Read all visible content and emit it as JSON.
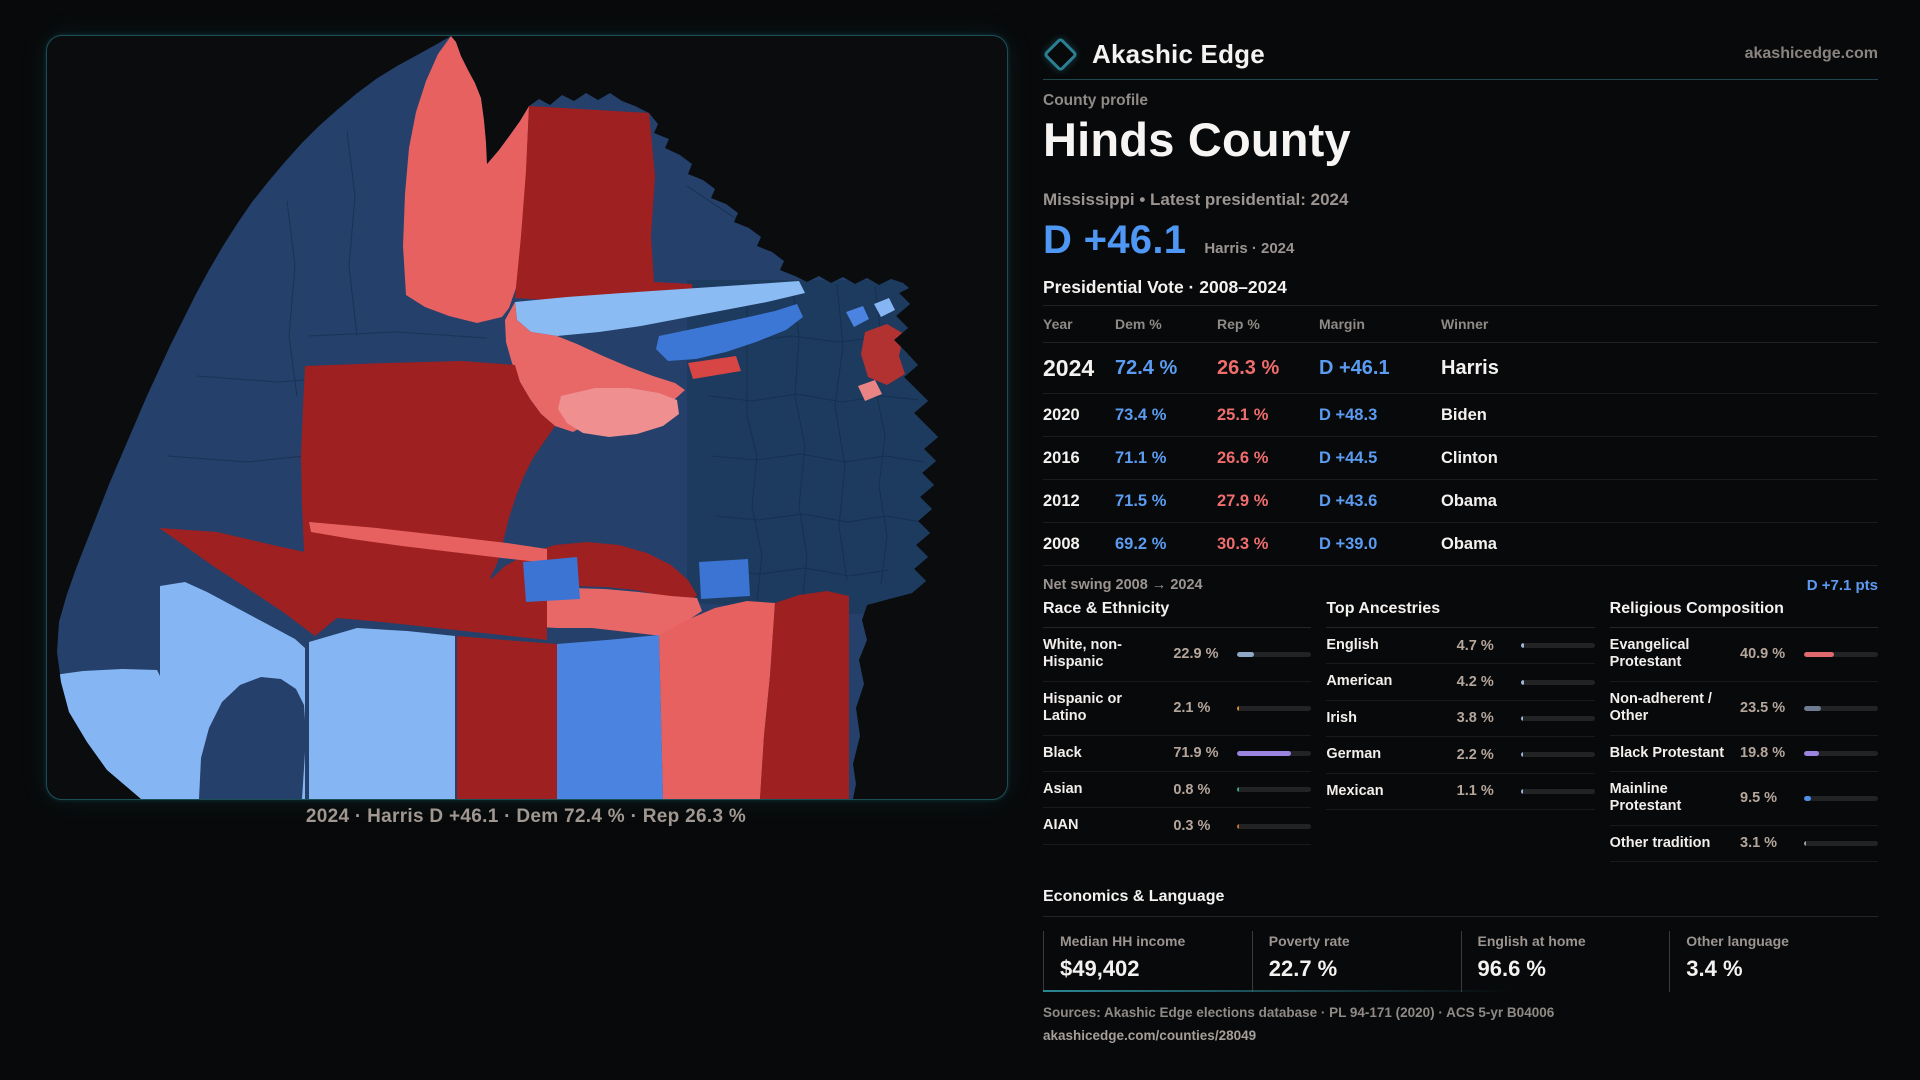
{
  "brand": {
    "name": "Akashic Edge",
    "domain": "akashicedge.com"
  },
  "profile": {
    "kicker": "County profile",
    "title": "Hinds County",
    "subtitle": "Mississippi • Latest presidential: 2024",
    "headline_margin": "D +46.1",
    "headline_context": "Harris · 2024"
  },
  "map": {
    "caption": "2024 · Harris D +46.1 · Dem 72.4 % · Rep 26.3 %"
  },
  "vote": {
    "title": "Presidential Vote · 2008–2024",
    "columns": [
      "Year",
      "Dem %",
      "Rep %",
      "Margin",
      "Winner"
    ],
    "rows": [
      {
        "year": "2024",
        "dem": "72.4 %",
        "rep": "26.3 %",
        "margin": "D +46.1",
        "winner": "Harris",
        "big": true
      },
      {
        "year": "2020",
        "dem": "73.4 %",
        "rep": "25.1 %",
        "margin": "D +48.3",
        "winner": "Biden"
      },
      {
        "year": "2016",
        "dem": "71.1 %",
        "rep": "26.6 %",
        "margin": "D +44.5",
        "winner": "Clinton"
      },
      {
        "year": "2012",
        "dem": "71.5 %",
        "rep": "27.9 %",
        "margin": "D +43.6",
        "winner": "Obama"
      },
      {
        "year": "2008",
        "dem": "69.2 %",
        "rep": "30.3 %",
        "margin": "D +39.0",
        "winner": "Obama"
      }
    ],
    "net_swing_label": "Net swing 2008 → 2024",
    "net_swing_value": "D +7.1 pts"
  },
  "sections": {
    "race": {
      "title": "Race & Ethnicity",
      "rows": [
        {
          "label": "White, non-Hispanic",
          "value": "22.9 %",
          "pct": 22.9,
          "color": "#90a8c8"
        },
        {
          "label": "Hispanic or Latino",
          "value": "2.1 %",
          "pct": 2.1,
          "color": "#d78e35"
        },
        {
          "label": "Black",
          "value": "71.9 %",
          "pct": 71.9,
          "color": "#9a84e0"
        },
        {
          "label": "Asian",
          "value": "0.8 %",
          "pct": 0.8,
          "color": "#35a98a"
        },
        {
          "label": "AIAN",
          "value": "0.3 %",
          "pct": 0.3,
          "color": "#c76f2e"
        }
      ]
    },
    "ancestries": {
      "title": "Top Ancestries",
      "rows": [
        {
          "label": "English",
          "value": "4.7 %",
          "pct": 4.7,
          "color": "#9fb6d8"
        },
        {
          "label": "American",
          "value": "4.2 %",
          "pct": 4.2,
          "color": "#9fb6d8"
        },
        {
          "label": "Irish",
          "value": "3.8 %",
          "pct": 3.8,
          "color": "#9fb6d8"
        },
        {
          "label": "German",
          "value": "2.2 %",
          "pct": 2.2,
          "color": "#9fb6d8"
        },
        {
          "label": "Mexican",
          "value": "1.1 %",
          "pct": 1.1,
          "color": "#9fb6d8"
        }
      ]
    },
    "religion": {
      "title": "Religious Composition",
      "rows": [
        {
          "label": "Evangelical Protestant",
          "value": "40.9 %",
          "pct": 40.9,
          "color": "#e0696e"
        },
        {
          "label": "Non-adherent / Other",
          "value": "23.5 %",
          "pct": 23.5,
          "color": "#6e7b90"
        },
        {
          "label": "Black Protestant",
          "value": "19.8 %",
          "pct": 19.8,
          "color": "#9a84e0"
        },
        {
          "label": "Mainline Protestant",
          "value": "9.5 %",
          "pct": 9.5,
          "color": "#4e90e8"
        },
        {
          "label": "Other tradition",
          "value": "3.1 %",
          "pct": 3.1,
          "color": "#9aa0a8"
        }
      ]
    }
  },
  "economics": {
    "title": "Economics & Language",
    "stats": [
      {
        "label": "Median HH income",
        "value": "$49,402"
      },
      {
        "label": "Poverty rate",
        "value": "22.7 %"
      },
      {
        "label": "English at home",
        "value": "96.6 %"
      },
      {
        "label": "Other language",
        "value": "3.4 %"
      }
    ]
  },
  "footer": {
    "sources": "Sources: Akashic Edge elections database · PL 94-171 (2020) · ACS 5-yr B04006",
    "permalink": "akashicedge.com/counties/28049"
  },
  "colors": {
    "accent_dem": "#5b9cf2",
    "accent_rep": "#ef6d6d",
    "brand_teal": "#2b7f93",
    "map_navy": "#24406b",
    "map_navy_dark": "#1d3a5f",
    "map_salmon": "#e86161",
    "map_dark_red": "#9e2020",
    "map_light_blue": "#85b6f3",
    "map_medium_blue": "#3d77d6"
  }
}
